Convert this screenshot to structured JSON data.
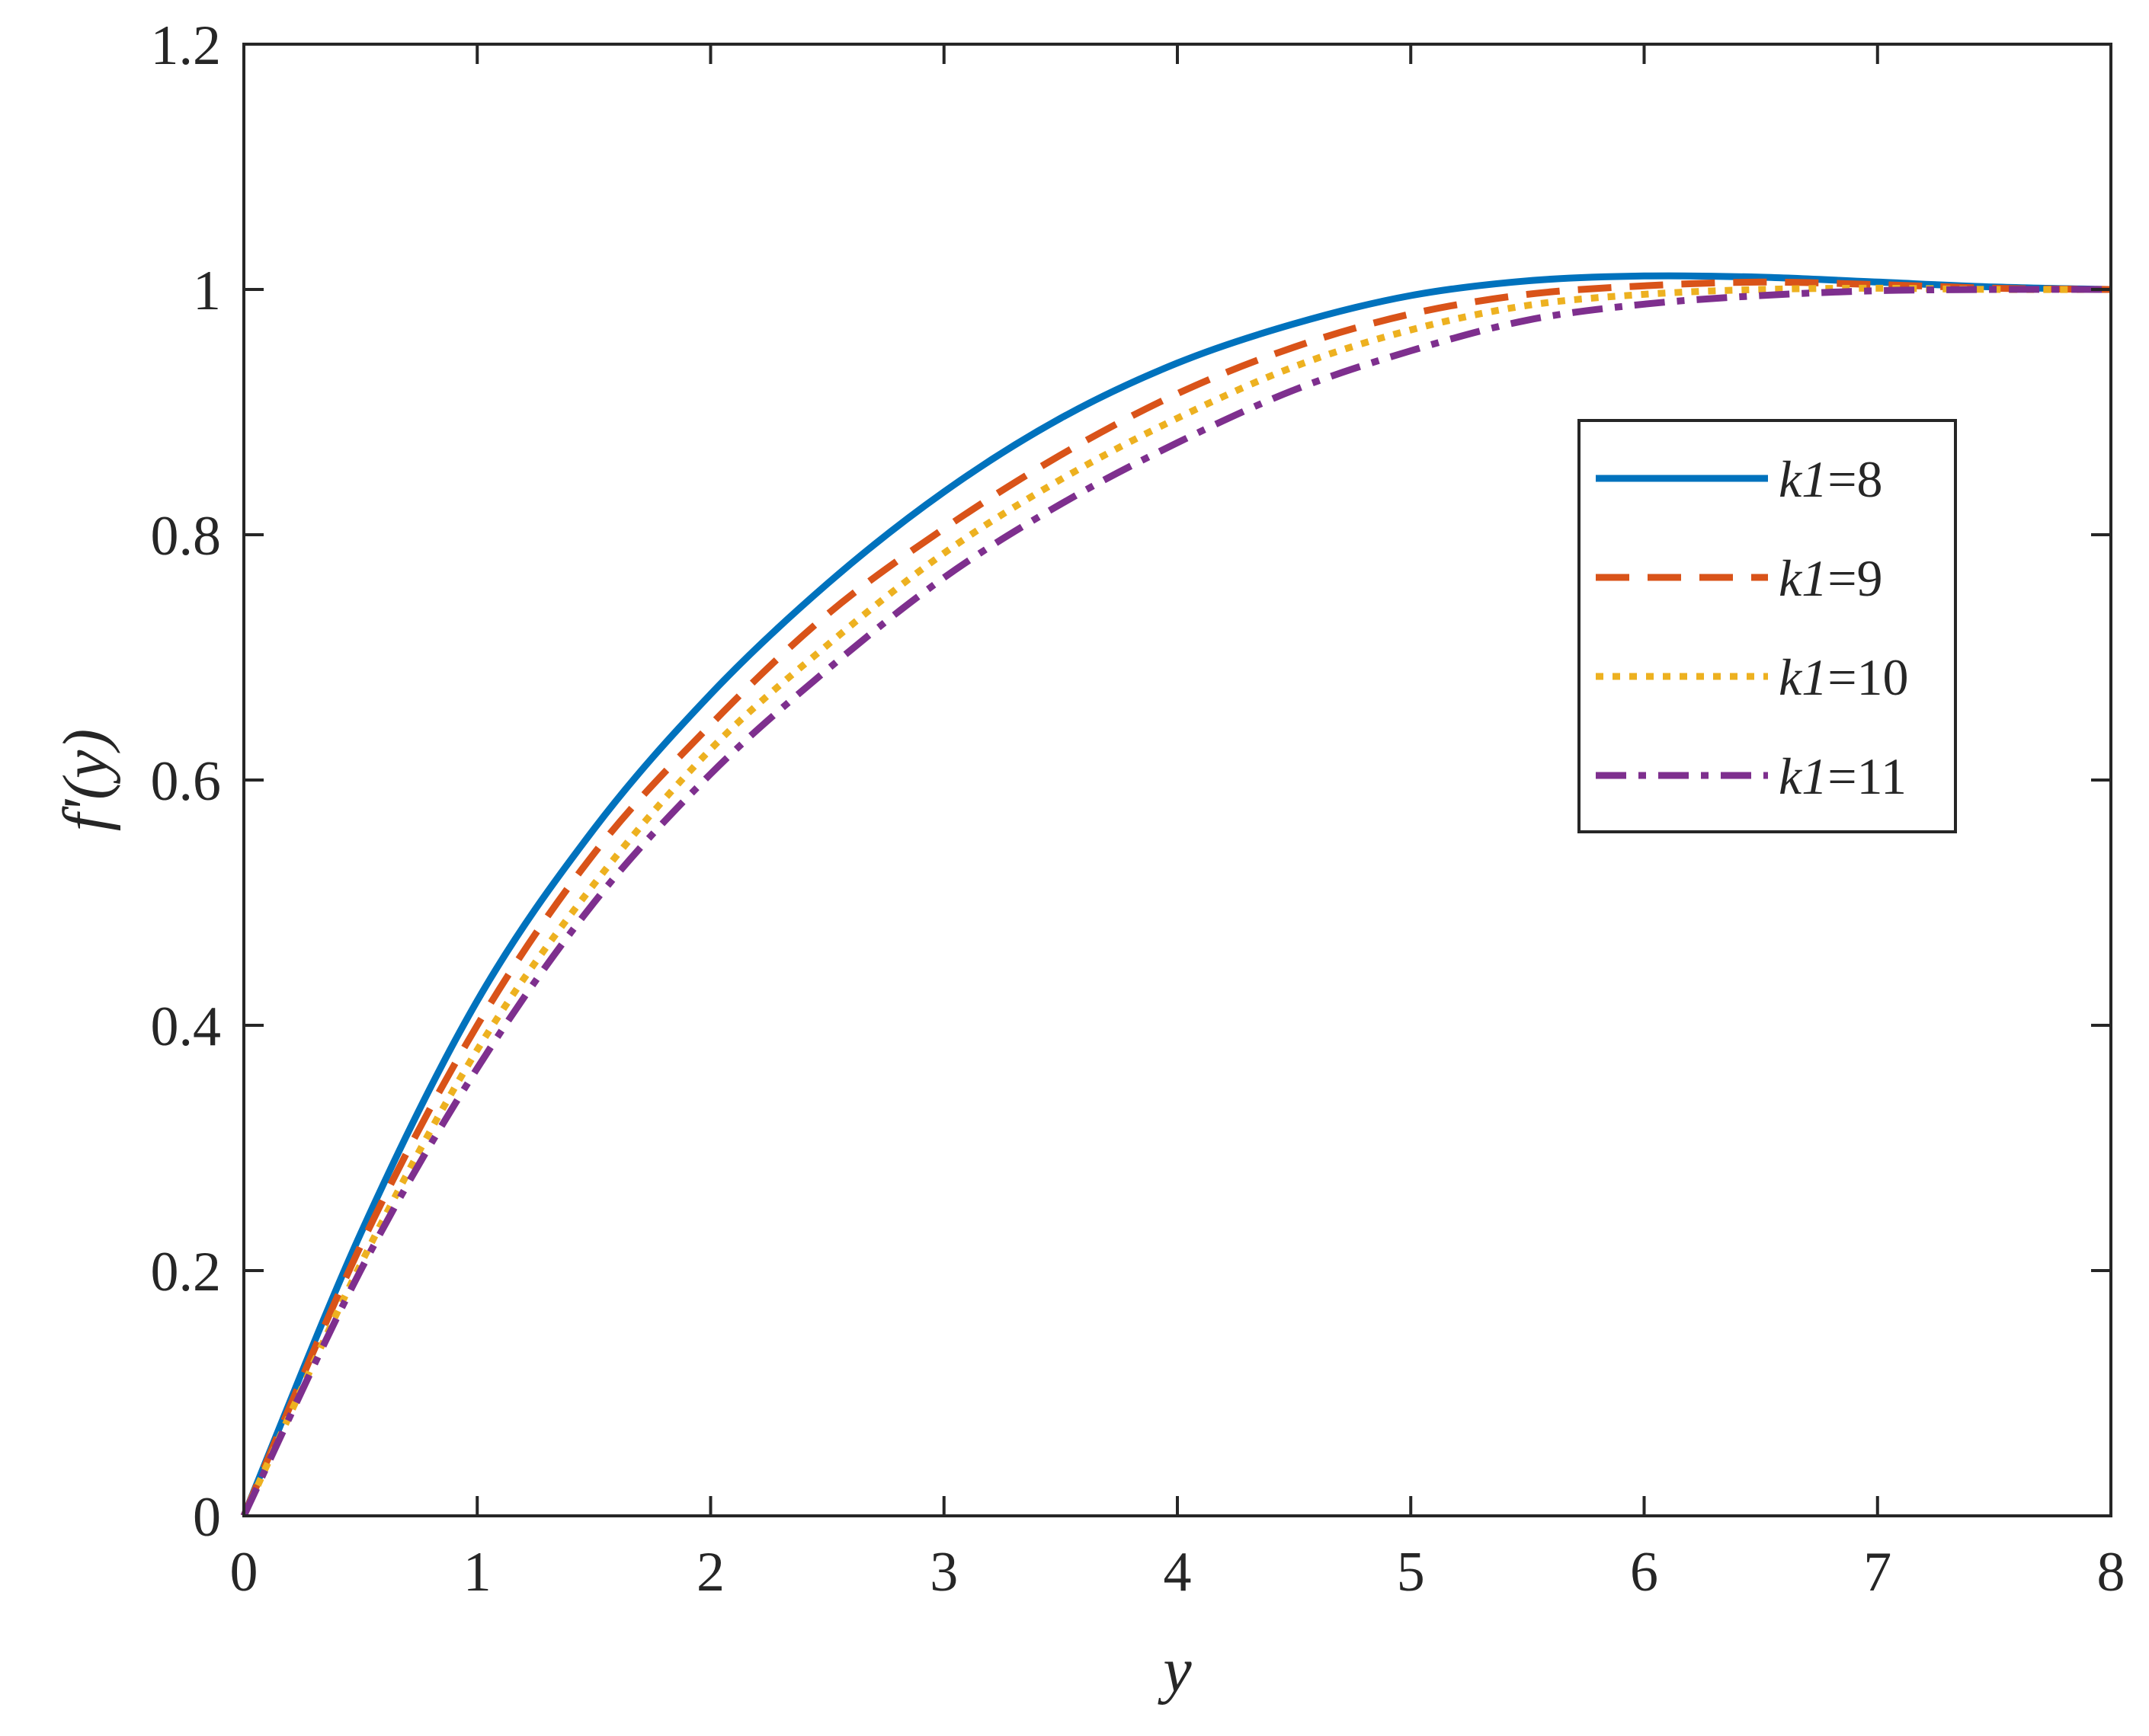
{
  "chart_data": {
    "type": "line",
    "title": "",
    "xlabel": "y",
    "ylabel": "f'(y)",
    "xlim": [
      0,
      8
    ],
    "ylim": [
      0,
      1.2
    ],
    "xticks": [
      "0",
      "1",
      "2",
      "3",
      "4",
      "5",
      "6",
      "7",
      "8"
    ],
    "yticks": [
      "0",
      "0.2",
      "0.4",
      "0.6",
      "0.8",
      "1",
      "1.2"
    ],
    "grid": false,
    "legend_position": "right",
    "x": [
      0,
      0.5,
      1,
      1.5,
      2,
      2.5,
      3,
      3.5,
      4,
      4.5,
      5,
      5.5,
      6,
      6.5,
      7,
      7.5,
      8
    ],
    "series": [
      {
        "name_prefix": "k1",
        "name_value": "=8",
        "color": "#0072BD",
        "style": "solid",
        "values": [
          0,
          0.23,
          0.42,
          0.56,
          0.67,
          0.76,
          0.835,
          0.895,
          0.94,
          0.972,
          0.995,
          1.007,
          1.011,
          1.01,
          1.006,
          1.002,
          1.0
        ]
      },
      {
        "name_prefix": "k1",
        "name_value": "=9",
        "color": "#D95319",
        "style": "dashed",
        "values": [
          0,
          0.22,
          0.4,
          0.54,
          0.645,
          0.735,
          0.805,
          0.865,
          0.915,
          0.953,
          0.98,
          0.996,
          1.003,
          1.006,
          1.004,
          1.001,
          1.0
        ]
      },
      {
        "name_prefix": "k1",
        "name_value": "=10",
        "color": "#EDB120",
        "style": "dotted",
        "values": [
          0,
          0.205,
          0.38,
          0.515,
          0.625,
          0.71,
          0.785,
          0.845,
          0.895,
          0.937,
          0.967,
          0.987,
          0.996,
          1.0,
          1.001,
          1.0,
          1.0
        ]
      },
      {
        "name_prefix": "k1",
        "name_value": "=11",
        "color": "#7E2F8E",
        "style": "dashdot",
        "values": [
          0,
          0.2,
          0.365,
          0.5,
          0.605,
          0.69,
          0.765,
          0.825,
          0.875,
          0.918,
          0.95,
          0.975,
          0.988,
          0.995,
          0.999,
          1.0,
          1.0
        ]
      }
    ]
  }
}
